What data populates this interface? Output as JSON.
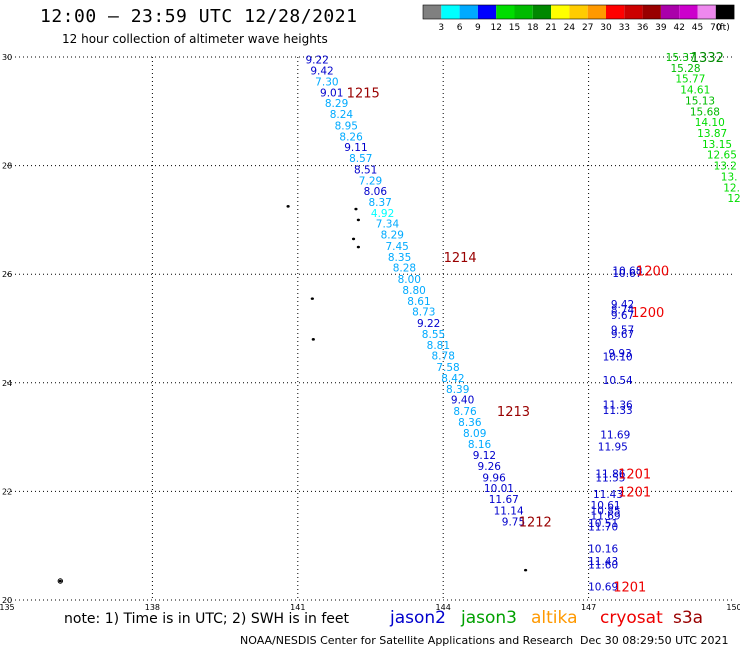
{
  "header": {
    "title": "12:00 – 23:59 UTC 12/28/2021",
    "subtitle": "12 hour collection of altimeter wave heights"
  },
  "legend": {
    "colors": [
      "#808080",
      "#00ffff",
      "#00aaff",
      "#0000ff",
      "#00dd00",
      "#00bb00",
      "#008800",
      "#ffff00",
      "#ffcc00",
      "#ff9900",
      "#ff0000",
      "#cc0000",
      "#990000",
      "#aa00aa",
      "#cc00cc",
      "#ee88ee",
      "#000000"
    ],
    "labels": [
      "3",
      "6",
      "9",
      "12",
      "15",
      "18",
      "21",
      "24",
      "27",
      "30",
      "33",
      "36",
      "39",
      "42",
      "45",
      "70",
      "(ft)"
    ]
  },
  "axes": {
    "x_ticks": [
      "135",
      "138",
      "141",
      "144",
      "147",
      "150"
    ],
    "y_ticks": [
      "30",
      "28",
      "26",
      "24",
      "22",
      "20"
    ],
    "xlim": [
      135,
      150
    ],
    "ylim": [
      20,
      30
    ]
  },
  "footnote": {
    "note": "note:  1) Time is in UTC;  2) SWH is in feet",
    "satellites": [
      {
        "name": "jason2",
        "color": "#0000cc"
      },
      {
        "name": "jason3",
        "color": "#00a000"
      },
      {
        "name": "altika",
        "color": "#ff9900"
      },
      {
        "name": "cryosat",
        "color": "#ee0000"
      },
      {
        "name": "s3a",
        "color": "#990000"
      }
    ],
    "credit": "NOAA/NESDIS Center for Satellite Applications and Research",
    "timestamp": "Dec 30 08:29:50 UTC 2021"
  },
  "chart_data": {
    "type": "scatter",
    "tracks": [
      {
        "points": [
          {
            "lon": 141.4,
            "lat": 29.95,
            "v": "9.22",
            "c": "#0000cc"
          },
          {
            "lon": 141.5,
            "lat": 29.75,
            "v": "9.42",
            "c": "#0000cc"
          },
          {
            "lon": 141.6,
            "lat": 29.55,
            "v": "7.30",
            "c": "#00aaff"
          },
          {
            "lon": 141.7,
            "lat": 29.35,
            "v": "9.01",
            "c": "#0000cc"
          },
          {
            "lon": 141.8,
            "lat": 29.15,
            "v": "8.29",
            "c": "#00aaff"
          },
          {
            "lon": 141.9,
            "lat": 28.95,
            "v": "8.24",
            "c": "#00aaff"
          },
          {
            "lon": 142.0,
            "lat": 28.74,
            "v": "8.95",
            "c": "#00aaff"
          },
          {
            "lon": 142.1,
            "lat": 28.54,
            "v": "8.26",
            "c": "#00aaff"
          },
          {
            "lon": 142.2,
            "lat": 28.34,
            "v": "9.11",
            "c": "#0000cc"
          },
          {
            "lon": 142.3,
            "lat": 28.14,
            "v": "8.57",
            "c": "#00aaff"
          },
          {
            "lon": 142.4,
            "lat": 27.93,
            "v": "8.51",
            "c": "#0000cc"
          },
          {
            "lon": 142.5,
            "lat": 27.73,
            "v": "7.29",
            "c": "#00aaff"
          },
          {
            "lon": 142.6,
            "lat": 27.53,
            "v": "8.06",
            "c": "#0000cc"
          },
          {
            "lon": 142.7,
            "lat": 27.33,
            "v": "8.37",
            "c": "#00aaff"
          },
          {
            "lon": 142.75,
            "lat": 27.13,
            "v": "4.92",
            "c": "#00ffff"
          },
          {
            "lon": 142.85,
            "lat": 26.93,
            "v": "7.34",
            "c": "#00aaff"
          },
          {
            "lon": 142.95,
            "lat": 26.73,
            "v": "8.29",
            "c": "#00aaff"
          },
          {
            "lon": 143.05,
            "lat": 26.52,
            "v": "7.45",
            "c": "#00aaff"
          },
          {
            "lon": 143.1,
            "lat": 26.32,
            "v": "8.35",
            "c": "#00aaff"
          },
          {
            "lon": 143.2,
            "lat": 26.12,
            "v": "8.28",
            "c": "#00aaff"
          },
          {
            "lon": 143.3,
            "lat": 25.91,
            "v": "8.00",
            "c": "#00aaff"
          },
          {
            "lon": 143.4,
            "lat": 25.71,
            "v": "8.80",
            "c": "#00aaff"
          },
          {
            "lon": 143.5,
            "lat": 25.51,
            "v": "8.61",
            "c": "#00aaff"
          },
          {
            "lon": 143.6,
            "lat": 25.31,
            "v": "8.73",
            "c": "#00aaff"
          },
          {
            "lon": 143.7,
            "lat": 25.1,
            "v": "9.22",
            "c": "#0000cc"
          },
          {
            "lon": 143.8,
            "lat": 24.9,
            "v": "8.55",
            "c": "#00aaff"
          },
          {
            "lon": 143.9,
            "lat": 24.7,
            "v": "8.81",
            "c": "#00aaff"
          },
          {
            "lon": 144.0,
            "lat": 24.5,
            "v": "8.78",
            "c": "#00aaff"
          },
          {
            "lon": 144.1,
            "lat": 24.29,
            "v": "7.58",
            "c": "#00aaff"
          },
          {
            "lon": 144.2,
            "lat": 24.09,
            "v": "8.42",
            "c": "#00aaff"
          },
          {
            "lon": 144.3,
            "lat": 23.89,
            "v": "8.39",
            "c": "#00aaff"
          },
          {
            "lon": 144.4,
            "lat": 23.69,
            "v": "9.40",
            "c": "#0000cc"
          },
          {
            "lon": 144.45,
            "lat": 23.48,
            "v": "8.76",
            "c": "#00aaff"
          },
          {
            "lon": 144.55,
            "lat": 23.28,
            "v": "8.36",
            "c": "#00aaff"
          },
          {
            "lon": 144.65,
            "lat": 23.08,
            "v": "8.09",
            "c": "#00aaff"
          },
          {
            "lon": 144.75,
            "lat": 22.87,
            "v": "8.16",
            "c": "#00aaff"
          },
          {
            "lon": 144.85,
            "lat": 22.67,
            "v": "9.12",
            "c": "#0000cc"
          },
          {
            "lon": 144.95,
            "lat": 22.47,
            "v": "9.26",
            "c": "#0000cc"
          },
          {
            "lon": 145.05,
            "lat": 22.26,
            "v": "9.96",
            "c": "#0000cc"
          },
          {
            "lon": 145.15,
            "lat": 22.06,
            "v": "10.01",
            "c": "#0000cc"
          },
          {
            "lon": 145.25,
            "lat": 21.86,
            "v": "11.67",
            "c": "#0000cc"
          },
          {
            "lon": 145.35,
            "lat": 21.65,
            "v": "11.14",
            "c": "#0000cc"
          },
          {
            "lon": 145.45,
            "lat": 21.45,
            "v": "9.75",
            "c": "#0000cc"
          }
        ]
      },
      {
        "points": [
          {
            "lon": 147.8,
            "lat": 26.07,
            "v": "10.68",
            "c": "#0000cc"
          },
          {
            "lon": 147.8,
            "lat": 26.02,
            "v": "10.67",
            "c": "#0000cc"
          },
          {
            "lon": 147.7,
            "lat": 25.45,
            "v": "9.42",
            "c": "#0000cc"
          },
          {
            "lon": 147.7,
            "lat": 25.35,
            "v": "8.74",
            "c": "#0000cc"
          },
          {
            "lon": 147.7,
            "lat": 25.25,
            "v": "9.67",
            "c": "#0000cc"
          },
          {
            "lon": 147.7,
            "lat": 24.98,
            "v": "9.57",
            "c": "#0000cc"
          },
          {
            "lon": 147.7,
            "lat": 24.9,
            "v": "9.67",
            "c": "#0000cc"
          },
          {
            "lon": 147.65,
            "lat": 24.55,
            "v": "9.93",
            "c": "#0000cc"
          },
          {
            "lon": 147.6,
            "lat": 24.48,
            "v": "10.10",
            "c": "#0000cc"
          },
          {
            "lon": 147.6,
            "lat": 24.05,
            "v": "10.54",
            "c": "#0000cc"
          },
          {
            "lon": 147.6,
            "lat": 23.6,
            "v": "11.36",
            "c": "#0000cc"
          },
          {
            "lon": 147.6,
            "lat": 23.5,
            "v": "11.33",
            "c": "#0000cc"
          },
          {
            "lon": 147.55,
            "lat": 23.05,
            "v": "11.69",
            "c": "#0000cc"
          },
          {
            "lon": 147.5,
            "lat": 22.83,
            "v": "11.95",
            "c": "#0000cc"
          },
          {
            "lon": 147.45,
            "lat": 22.33,
            "v": "11.86",
            "c": "#0000cc"
          },
          {
            "lon": 147.45,
            "lat": 22.26,
            "v": "11.55",
            "c": "#0000cc"
          },
          {
            "lon": 147.4,
            "lat": 21.95,
            "v": "11.43",
            "c": "#0000cc"
          },
          {
            "lon": 147.35,
            "lat": 21.75,
            "v": "10.61",
            "c": "#0000cc"
          },
          {
            "lon": 147.35,
            "lat": 21.65,
            "v": "10.85",
            "c": "#0000cc"
          },
          {
            "lon": 147.35,
            "lat": 21.56,
            "v": "11.69",
            "c": "#0000cc"
          },
          {
            "lon": 147.3,
            "lat": 21.42,
            "v": "10.51",
            "c": "#0000cc"
          },
          {
            "lon": 147.3,
            "lat": 21.35,
            "v": "11.70",
            "c": "#0000cc"
          },
          {
            "lon": 147.3,
            "lat": 20.95,
            "v": "10.16",
            "c": "#0000cc"
          },
          {
            "lon": 147.3,
            "lat": 20.72,
            "v": "11.43",
            "c": "#0000cc"
          },
          {
            "lon": 147.3,
            "lat": 20.65,
            "v": "11.60",
            "c": "#0000cc"
          },
          {
            "lon": 147.3,
            "lat": 20.25,
            "v": "10.69",
            "c": "#0000cc"
          }
        ]
      },
      {
        "points": [
          {
            "lon": 148.9,
            "lat": 30.0,
            "v": "15.37",
            "c": "#00bb00"
          },
          {
            "lon": 149.0,
            "lat": 29.8,
            "v": "15.28",
            "c": "#00bb00"
          },
          {
            "lon": 149.1,
            "lat": 29.6,
            "v": "15.77",
            "c": "#00dd00"
          },
          {
            "lon": 149.2,
            "lat": 29.4,
            "v": "14.61",
            "c": "#00dd00"
          },
          {
            "lon": 149.3,
            "lat": 29.2,
            "v": "15.13",
            "c": "#00bb00"
          },
          {
            "lon": 149.4,
            "lat": 29.0,
            "v": "15.68",
            "c": "#00bb00"
          },
          {
            "lon": 149.5,
            "lat": 28.8,
            "v": "14.10",
            "c": "#00dd00"
          },
          {
            "lon": 149.55,
            "lat": 28.6,
            "v": "13.87",
            "c": "#00dd00"
          },
          {
            "lon": 149.65,
            "lat": 28.4,
            "v": "13.15",
            "c": "#00dd00"
          },
          {
            "lon": 149.75,
            "lat": 28.2,
            "v": "12.65",
            "c": "#00dd00"
          },
          {
            "lon": 149.82,
            "lat": 28.0,
            "v": "13.2",
            "c": "#00dd00"
          },
          {
            "lon": 149.9,
            "lat": 27.8,
            "v": "13.",
            "c": "#00dd00"
          },
          {
            "lon": 149.95,
            "lat": 27.6,
            "v": "12.",
            "c": "#00dd00"
          },
          {
            "lon": 150.0,
            "lat": 27.4,
            "v": "12",
            "c": "#00dd00"
          }
        ]
      }
    ],
    "time_labels": [
      {
        "lon": 142.35,
        "lat": 29.35,
        "t": "1215",
        "c": "#990000"
      },
      {
        "lon": 144.35,
        "lat": 26.32,
        "t": "1214",
        "c": "#990000"
      },
      {
        "lon": 145.45,
        "lat": 23.48,
        "t": "1213",
        "c": "#990000"
      },
      {
        "lon": 145.9,
        "lat": 21.45,
        "t": "1212",
        "c": "#990000"
      },
      {
        "lon": 149.45,
        "lat": 30.0,
        "t": "1332",
        "c": "#008800"
      },
      {
        "lon": 148.32,
        "lat": 26.07,
        "t": "1200",
        "c": "#ee0000"
      },
      {
        "lon": 148.22,
        "lat": 25.3,
        "t": "1200",
        "c": "#ee0000"
      },
      {
        "lon": 147.95,
        "lat": 22.33,
        "t": "1201",
        "c": "#ee0000"
      },
      {
        "lon": 147.95,
        "lat": 22.0,
        "t": "1201",
        "c": "#ee0000"
      },
      {
        "lon": 147.85,
        "lat": 20.25,
        "t": "1201",
        "c": "#ee0000"
      }
    ],
    "islands": [
      {
        "lon": 140.8,
        "lat": 27.25
      },
      {
        "lon": 142.2,
        "lat": 27.2
      },
      {
        "lon": 142.25,
        "lat": 27.0
      },
      {
        "lon": 142.15,
        "lat": 26.65
      },
      {
        "lon": 142.25,
        "lat": 26.5
      },
      {
        "lon": 141.3,
        "lat": 25.55
      },
      {
        "lon": 141.32,
        "lat": 24.8
      },
      {
        "lon": 145.7,
        "lat": 20.55
      },
      {
        "lon": 136.1,
        "lat": 20.35
      }
    ]
  }
}
